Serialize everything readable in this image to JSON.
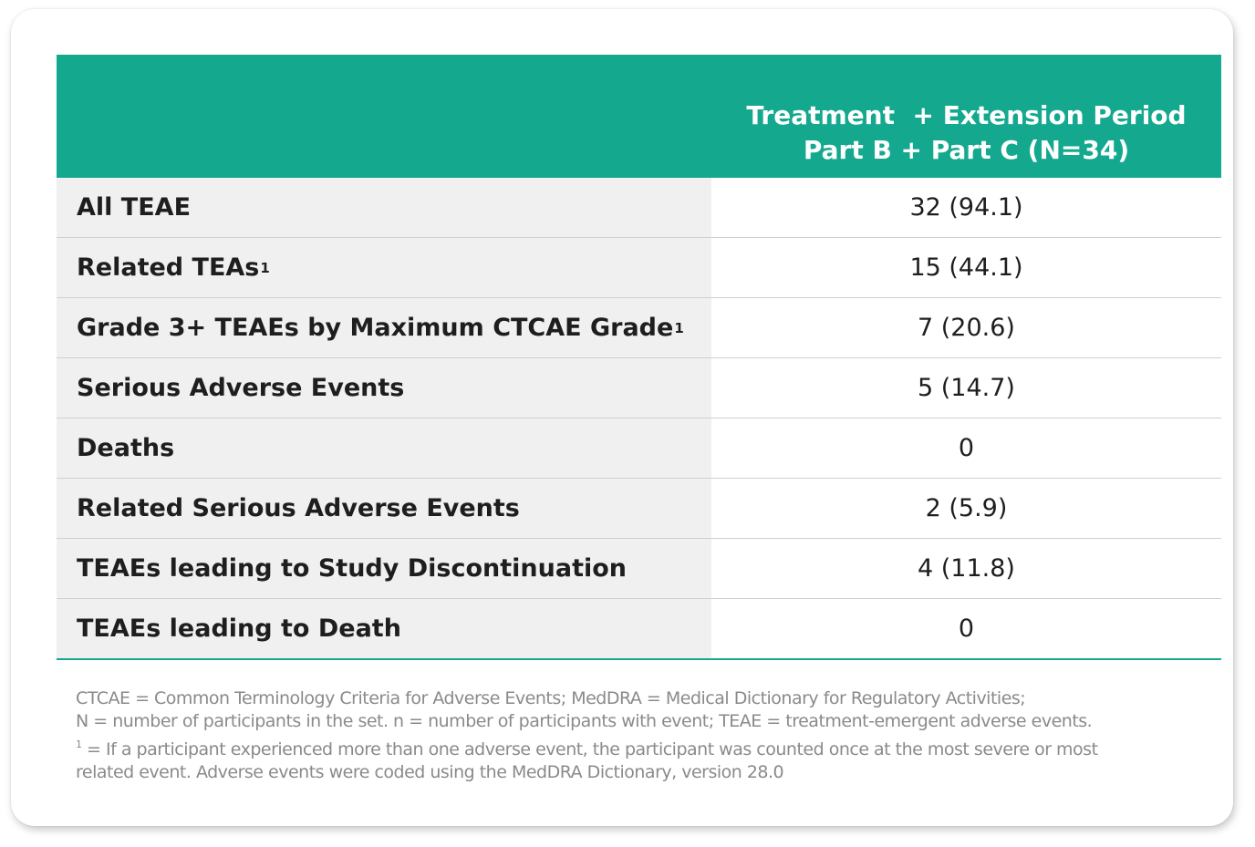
{
  "header": {
    "line1": "Treatment  + Extension Period",
    "line2": "Part B + Part C (N=34)"
  },
  "rows": [
    {
      "label": "All TEAE",
      "sup": "",
      "value": "32 (94.1)"
    },
    {
      "label": "Related TEAs",
      "sup": "1",
      "value": "15 (44.1)"
    },
    {
      "label": "Grade 3+ TEAEs by Maximum CTCAE Grade",
      "sup": "1",
      "value": "7 (20.6)"
    },
    {
      "label": "Serious Adverse Events",
      "sup": "",
      "value": "5 (14.7)"
    },
    {
      "label": "Deaths",
      "sup": "",
      "value": "0"
    },
    {
      "label": "Related Serious Adverse Events",
      "sup": "",
      "value": "2 (5.9)"
    },
    {
      "label": "TEAEs leading to Study Discontinuation",
      "sup": "",
      "value": "4 (11.8)"
    },
    {
      "label": "TEAEs leading to Death",
      "sup": "",
      "value": "0"
    }
  ],
  "footnotes": {
    "line1": "CTCAE = Common Terminology Criteria for Adverse Events; MedDRA = Medical Dictionary for Regulatory Activities;",
    "line2": "N = number of participants in the set. n = number of participants with event; TEAE = treatment-emergent adverse events.",
    "line3_sup": "1",
    "line3": " = If a participant experienced more than one adverse event, the participant was counted once at the most severe or most",
    "line4": "related event. Adverse events were coded using the MedDRA Dictionary, version 28.0"
  },
  "colors": {
    "header_bg": "#14a98f",
    "label_bg": "#f0f0f0",
    "footnote_text": "#8a8a8a"
  }
}
